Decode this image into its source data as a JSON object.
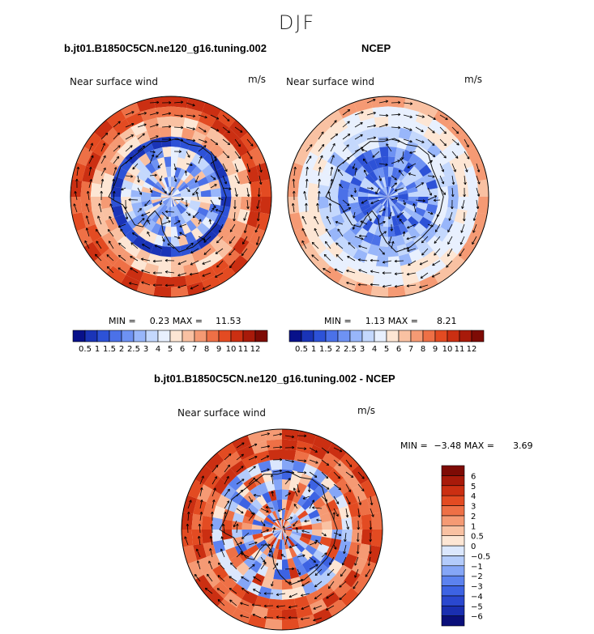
{
  "page_title": "DJF",
  "chart_data": [
    {
      "type": "heatmap",
      "title": "b.jt01.B1850C5CN.ne120_g16.tuning.002",
      "variable": "Near surface wind",
      "units": "m/s",
      "min_label": "MIN =",
      "min_value": "0.23",
      "max_label": "MAX =",
      "max_value": "11.53",
      "levels": [
        "0.5",
        "1",
        "1.5",
        "2",
        "2.5",
        "3",
        "4",
        "5",
        "6",
        "7",
        "8",
        "9",
        "10",
        "11",
        "12"
      ],
      "colors": [
        "#08118a",
        "#1a34b7",
        "#2d52d7",
        "#4b71e8",
        "#6e92f3",
        "#98b6fa",
        "#c4d8fd",
        "#e8f0fe",
        "#fde6d4",
        "#f9c1a2",
        "#f59a74",
        "#ee7046",
        "#e34b22",
        "#cb2f12",
        "#a81a0a",
        "#7e0b05"
      ]
    },
    {
      "type": "heatmap",
      "title": "NCEP",
      "variable": "Near surface wind",
      "units": "m/s",
      "min_label": "MIN =",
      "min_value": "1.13",
      "max_label": "MAX =",
      "max_value": "8.21",
      "levels": [
        "0.5",
        "1",
        "1.5",
        "2",
        "2.5",
        "3",
        "4",
        "5",
        "6",
        "7",
        "8",
        "9",
        "10",
        "11",
        "12"
      ],
      "colors": [
        "#08118a",
        "#1a34b7",
        "#2d52d7",
        "#4b71e8",
        "#6e92f3",
        "#98b6fa",
        "#c4d8fd",
        "#e8f0fe",
        "#fde6d4",
        "#f9c1a2",
        "#f59a74",
        "#ee7046",
        "#e34b22",
        "#cb2f12",
        "#a81a0a",
        "#7e0b05"
      ]
    },
    {
      "type": "heatmap",
      "title": "b.jt01.B1850C5CN.ne120_g16.tuning.002 - NCEP",
      "variable": "Near surface wind",
      "units": "m/s",
      "min_label": "MIN =",
      "min_value": "−3.48",
      "max_label": "MAX =",
      "max_value": "3.69",
      "levels": [
        "−6",
        "−5",
        "−4",
        "−3",
        "−2",
        "−1",
        "−0.5",
        "0",
        "0.5",
        "1",
        "2",
        "3",
        "4",
        "5",
        "6"
      ],
      "colors": [
        "#0a0f7a",
        "#1a2fb0",
        "#2a48cf",
        "#3d63e3",
        "#5c82ef",
        "#85a6f7",
        "#b3cbfb",
        "#dbe7fd",
        "#fde6d4",
        "#f9c1a2",
        "#f59a74",
        "#ee7046",
        "#e34b22",
        "#cb2f12",
        "#a81a0a",
        "#7e0b05"
      ]
    }
  ]
}
